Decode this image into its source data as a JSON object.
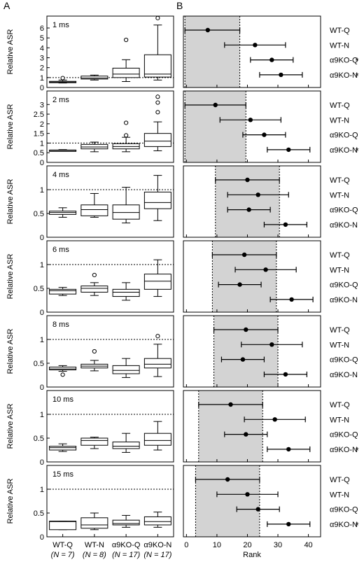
{
  "panel_labels": {
    "a": "A",
    "b": "B"
  },
  "style": {
    "shade_color": "#d3d3d3",
    "ink": "#000000"
  },
  "chart_data": [
    {
      "type": "box",
      "panel": "A",
      "ylabel": "Relative ASR",
      "categories": [
        {
          "name": "WT-Q",
          "n": "(N = 7)"
        },
        {
          "name": "WT-N",
          "n": "(N = 8)"
        },
        {
          "name": "α9KO-Q",
          "n": "(N = 17)"
        },
        {
          "name": "α9KO-N",
          "n": "(N = 17)"
        }
      ],
      "reference_line": 1,
      "rows": [
        {
          "label": "1 ms",
          "ylim": [
            0,
            7.2
          ],
          "yticks": [
            0,
            1,
            2,
            3,
            4,
            5,
            6
          ],
          "boxes": [
            {
              "min": 0.45,
              "q1": 0.48,
              "median": 0.55,
              "q3": 0.62,
              "max": 0.75,
              "outliers": [
                0.95
              ]
            },
            {
              "min": 0.75,
              "q1": 0.85,
              "median": 0.95,
              "q3": 1.15,
              "max": 1.25,
              "outliers": []
            },
            {
              "min": 0.6,
              "q1": 1.0,
              "median": 1.35,
              "q3": 1.95,
              "max": 2.8,
              "outliers": [
                4.8
              ]
            },
            {
              "min": 0.75,
              "q1": 1.05,
              "median": 1.35,
              "q3": 3.3,
              "max": 6.3,
              "outliers": [
                7.0
              ]
            }
          ]
        },
        {
          "label": "2 ms",
          "ylim": [
            0,
            3.7
          ],
          "yticks": [
            0,
            0.5,
            1,
            1.5,
            2,
            2.5,
            3
          ],
          "boxes": [
            {
              "min": 0.58,
              "q1": 0.6,
              "median": 0.62,
              "q3": 0.64,
              "max": 0.66,
              "outliers": []
            },
            {
              "min": 0.55,
              "q1": 0.7,
              "median": 0.8,
              "q3": 0.93,
              "max": 1.05,
              "outliers": []
            },
            {
              "min": 0.55,
              "q1": 0.7,
              "median": 0.82,
              "q3": 0.97,
              "max": 1.3,
              "outliers": [
                1.4,
                2.05
              ]
            },
            {
              "min": 0.6,
              "q1": 0.82,
              "median": 1.1,
              "q3": 1.5,
              "max": 2.1,
              "outliers": [
                2.6,
                3.1,
                3.4
              ]
            }
          ]
        },
        {
          "label": "4 ms",
          "ylim": [
            0,
            1.5
          ],
          "yticks": [
            0,
            0.5,
            1
          ],
          "boxes": [
            {
              "min": 0.42,
              "q1": 0.48,
              "median": 0.52,
              "q3": 0.55,
              "max": 0.62,
              "outliers": []
            },
            {
              "min": 0.42,
              "q1": 0.45,
              "median": 0.58,
              "q3": 0.68,
              "max": 0.92,
              "outliers": []
            },
            {
              "min": 0.3,
              "q1": 0.38,
              "median": 0.52,
              "q3": 0.68,
              "max": 1.05,
              "outliers": []
            },
            {
              "min": 0.35,
              "q1": 0.6,
              "median": 0.73,
              "q3": 0.95,
              "max": 1.3,
              "outliers": []
            }
          ]
        },
        {
          "label": "6 ms",
          "ylim": [
            0,
            1.5
          ],
          "yticks": [
            0,
            0.5,
            1
          ],
          "boxes": [
            {
              "min": 0.35,
              "q1": 0.38,
              "median": 0.45,
              "q3": 0.48,
              "max": 0.52,
              "outliers": []
            },
            {
              "min": 0.35,
              "q1": 0.42,
              "median": 0.5,
              "q3": 0.55,
              "max": 0.62,
              "outliers": [
                0.78
              ]
            },
            {
              "min": 0.25,
              "q1": 0.33,
              "median": 0.42,
              "q3": 0.48,
              "max": 0.62,
              "outliers": []
            },
            {
              "min": 0.33,
              "q1": 0.48,
              "median": 0.65,
              "q3": 0.8,
              "max": 1.1,
              "outliers": []
            }
          ]
        },
        {
          "label": "8 ms",
          "ylim": [
            0,
            1.5
          ],
          "yticks": [
            0,
            0.5,
            1
          ],
          "boxes": [
            {
              "min": 0.33,
              "q1": 0.36,
              "median": 0.38,
              "q3": 0.42,
              "max": 0.45,
              "outliers": [
                0.26
              ]
            },
            {
              "min": 0.34,
              "q1": 0.4,
              "median": 0.44,
              "q3": 0.48,
              "max": 0.56,
              "outliers": [
                0.75
              ]
            },
            {
              "min": 0.2,
              "q1": 0.28,
              "median": 0.35,
              "q3": 0.45,
              "max": 0.6,
              "outliers": []
            },
            {
              "min": 0.22,
              "q1": 0.4,
              "median": 0.48,
              "q3": 0.6,
              "max": 0.9,
              "outliers": [
                1.07
              ]
            }
          ]
        },
        {
          "label": "10 ms",
          "ylim": [
            0,
            1.5
          ],
          "yticks": [
            0,
            0.5,
            1
          ],
          "boxes": [
            {
              "min": 0.22,
              "q1": 0.25,
              "median": 0.3,
              "q3": 0.33,
              "max": 0.38,
              "outliers": []
            },
            {
              "min": 0.28,
              "q1": 0.35,
              "median": 0.45,
              "q3": 0.5,
              "max": 0.52,
              "outliers": []
            },
            {
              "min": 0.2,
              "q1": 0.28,
              "median": 0.33,
              "q3": 0.42,
              "max": 0.6,
              "outliers": []
            },
            {
              "min": 0.25,
              "q1": 0.35,
              "median": 0.45,
              "q3": 0.6,
              "max": 0.85,
              "outliers": []
            }
          ]
        },
        {
          "label": "15 ms",
          "ylim": [
            0,
            1.5
          ],
          "yticks": [
            0,
            0.5,
            1
          ],
          "boxes": [
            {
              "min": 0.15,
              "q1": 0.15,
              "median": 0.32,
              "q3": 0.33,
              "max": 0.33,
              "outliers": []
            },
            {
              "min": 0.15,
              "q1": 0.18,
              "median": 0.25,
              "q3": 0.4,
              "max": 0.5,
              "outliers": []
            },
            {
              "min": 0.2,
              "q1": 0.25,
              "median": 0.28,
              "q3": 0.35,
              "max": 0.45,
              "outliers": []
            },
            {
              "min": 0.2,
              "q1": 0.25,
              "median": 0.32,
              "q3": 0.42,
              "max": 0.52,
              "outliers": []
            }
          ]
        }
      ]
    },
    {
      "type": "dot-interval",
      "panel": "B",
      "xlabel": "Rank",
      "xlim": [
        -1,
        44
      ],
      "xticks": [
        0,
        10,
        20,
        30,
        40
      ],
      "groups": [
        "WT-Q",
        "WT-N",
        "α9KO-Q",
        "α9KO-N"
      ],
      "star": "*",
      "rows": [
        {
          "shade": [
            -0.5,
            17.5
          ],
          "points": [
            {
              "mean": 7.0,
              "low": -0.5,
              "high": 17.5,
              "star": false
            },
            {
              "mean": 22.5,
              "low": 12.5,
              "high": 32.5,
              "star": false
            },
            {
              "mean": 28.0,
              "low": 21.0,
              "high": 35.0,
              "star": true
            },
            {
              "mean": 31.0,
              "low": 24.0,
              "high": 38.0,
              "star": true
            }
          ]
        },
        {
          "shade": [
            -0.5,
            19.5
          ],
          "points": [
            {
              "mean": 9.5,
              "low": -0.5,
              "high": 19.5,
              "star": false
            },
            {
              "mean": 21.0,
              "low": 11.0,
              "high": 31.0,
              "star": false
            },
            {
              "mean": 25.5,
              "low": 18.5,
              "high": 32.5,
              "star": false
            },
            {
              "mean": 33.5,
              "low": 26.5,
              "high": 40.5,
              "star": true
            }
          ]
        },
        {
          "shade": [
            9.5,
            30.5
          ],
          "points": [
            {
              "mean": 20.0,
              "low": 9.5,
              "high": 30.5,
              "star": false
            },
            {
              "mean": 23.5,
              "low": 13.5,
              "high": 33.5,
              "star": false
            },
            {
              "mean": 20.5,
              "low": 13.5,
              "high": 27.5,
              "star": false
            },
            {
              "mean": 32.5,
              "low": 25.5,
              "high": 39.5,
              "star": false
            }
          ]
        },
        {
          "shade": [
            8.5,
            29.5
          ],
          "points": [
            {
              "mean": 19.0,
              "low": 8.5,
              "high": 29.5,
              "star": false
            },
            {
              "mean": 26.0,
              "low": 16.0,
              "high": 36.0,
              "star": false
            },
            {
              "mean": 17.5,
              "low": 10.5,
              "high": 24.5,
              "star": false
            },
            {
              "mean": 34.5,
              "low": 27.5,
              "high": 41.5,
              "star": false
            }
          ]
        },
        {
          "shade": [
            9.0,
            30.0
          ],
          "points": [
            {
              "mean": 19.5,
              "low": 9.0,
              "high": 30.0,
              "star": false
            },
            {
              "mean": 28.0,
              "low": 18.0,
              "high": 38.0,
              "star": false
            },
            {
              "mean": 18.5,
              "low": 11.5,
              "high": 25.5,
              "star": false
            },
            {
              "mean": 32.5,
              "low": 25.5,
              "high": 39.5,
              "star": false
            }
          ]
        },
        {
          "shade": [
            4.0,
            25.0
          ],
          "points": [
            {
              "mean": 14.5,
              "low": 4.0,
              "high": 25.0,
              "star": false
            },
            {
              "mean": 29.0,
              "low": 19.0,
              "high": 39.0,
              "star": false
            },
            {
              "mean": 19.5,
              "low": 12.5,
              "high": 26.5,
              "star": false
            },
            {
              "mean": 33.5,
              "low": 26.5,
              "high": 40.5,
              "star": true
            }
          ]
        },
        {
          "shade": [
            3.0,
            24.0
          ],
          "points": [
            {
              "mean": 13.5,
              "low": 3.0,
              "high": 24.0,
              "star": false
            },
            {
              "mean": 20.0,
              "low": 10.0,
              "high": 30.0,
              "star": false
            },
            {
              "mean": 23.5,
              "low": 16.5,
              "high": 30.5,
              "star": false
            },
            {
              "mean": 33.5,
              "low": 26.5,
              "high": 40.5,
              "star": true
            }
          ]
        }
      ]
    }
  ]
}
